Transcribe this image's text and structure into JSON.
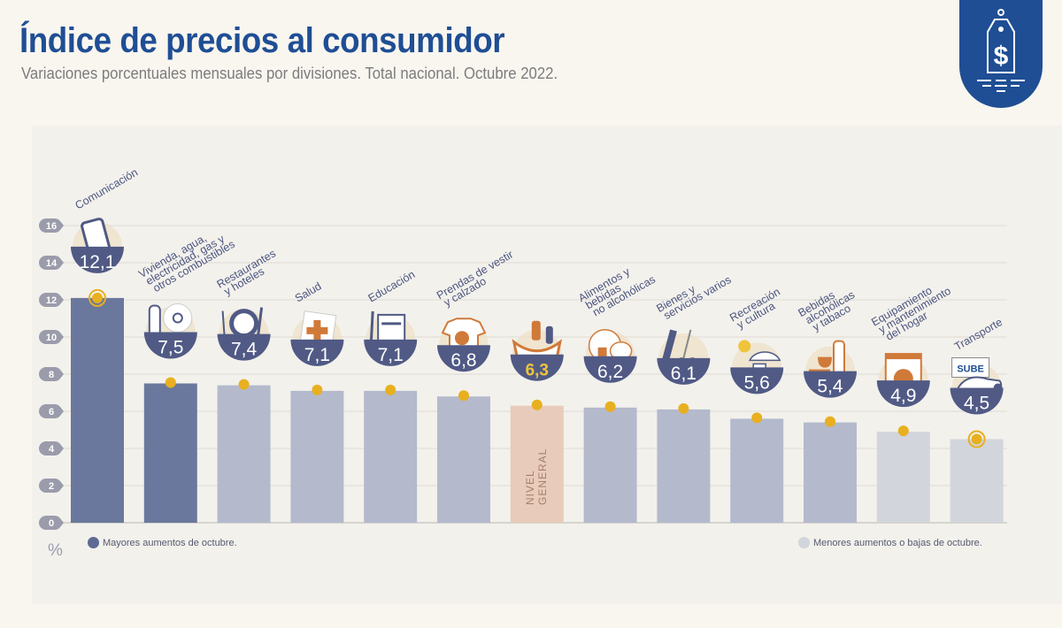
{
  "header": {
    "title": "Índice de precios al consumidor",
    "subtitle": "Variaciones porcentuales mensuales por divisiones. Total nacional. Octubre 2022."
  },
  "badge": {
    "icon": "price-tag-dollar-icon"
  },
  "legend": {
    "high": {
      "label": "Mayores aumentos de octubre.",
      "color": "#5e6a93"
    },
    "low": {
      "label": "Menores aumentos o bajas de octubre.",
      "color": "#d2d5dc"
    }
  },
  "unit_label": "%",
  "colors": {
    "dark_bar": "#6b789d",
    "mid_bar": "#b4bacc",
    "light_bar": "#d2d5dc",
    "general_bar": "#e8cbbb",
    "bowl": "#505a85",
    "marker": "#e8b020",
    "general_value": "#f0c43a",
    "label_text": "#4b5580",
    "axis_badge": "#9a9cab"
  },
  "chart_data": {
    "type": "bar",
    "title": "Índice de precios al consumidor",
    "subtitle": "Variaciones porcentuales mensuales por divisiones. Total nacional. Octubre 2022.",
    "xlabel": "",
    "ylabel": "%",
    "ylim": [
      0,
      16
    ],
    "yticks": [
      0,
      2,
      4,
      6,
      8,
      10,
      12,
      14,
      16
    ],
    "grid": true,
    "legend_position": "bottom",
    "categories": [
      "Comunicación",
      "Vivienda, agua, electricidad, gas y otros combustibles",
      "Restaurantes y hoteles",
      "Salud",
      "Educación",
      "Prendas de vestir y calzado",
      "Nivel general",
      "Alimentos y bebidas no alcohólicas",
      "Bienes y servicios varios",
      "Recreación y cultura",
      "Bebidas alcohólicas y tabaco",
      "Equipamiento y mantenimiento del hogar",
      "Transporte"
    ],
    "values": [
      12.1,
      7.5,
      7.4,
      7.1,
      7.1,
      6.8,
      6.3,
      6.2,
      6.1,
      5.6,
      5.4,
      4.9,
      4.5
    ],
    "value_labels": [
      "12,1",
      "7,5",
      "7,4",
      "7,1",
      "7,1",
      "6,8",
      "6,3",
      "6,2",
      "6,1",
      "5,6",
      "5,4",
      "4,9",
      "4,5"
    ],
    "label_lines": [
      [
        "Comunicación"
      ],
      [
        "Vivienda, agua,",
        "electricidad, gas y",
        "otros combustibles"
      ],
      [
        "Restaurantes",
        "y hoteles"
      ],
      [
        "Salud"
      ],
      [
        "Educación"
      ],
      [
        "Prendas de vestir",
        "y calzado"
      ],
      [],
      [
        "Alimentos y",
        "bebidas",
        "no alcohólicas"
      ],
      [
        "Bienes y",
        "servicios varios"
      ],
      [
        "Recreación",
        "y cultura"
      ],
      [
        "Bebidas",
        "alcohólicas",
        "y tabaco"
      ],
      [
        "Equipamiento",
        "y mantenimiento",
        "del hogar"
      ],
      [
        "Transporte"
      ]
    ],
    "groups": [
      "high",
      "high",
      "mid",
      "mid",
      "mid",
      "mid",
      "general",
      "mid",
      "mid",
      "mid",
      "mid",
      "low",
      "low"
    ],
    "icons": [
      "smartphone-icon",
      "key-lightbulb-icon",
      "plate-cutlery-icon",
      "first-aid-icon",
      "notebook-pencil-icon",
      "tshirt-shoe-icon",
      "grocery-bag-icon",
      "food-drink-icon",
      "comb-scissors-icon",
      "umbrella-sun-icon",
      "wine-cigarette-icon",
      "washing-machine-icon",
      "car-sube-card-icon"
    ],
    "general_bar_text": [
      "NIVEL",
      "GENERAL"
    ]
  }
}
